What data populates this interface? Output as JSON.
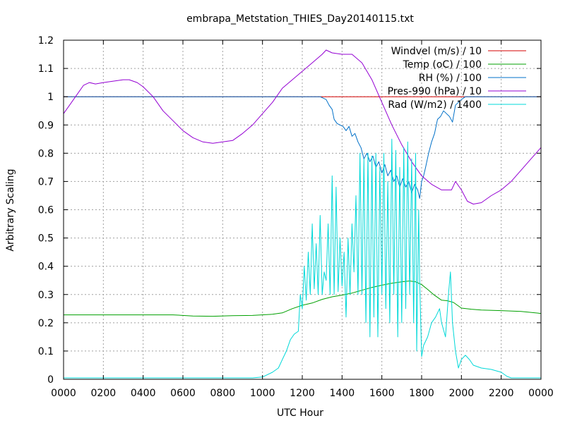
{
  "chart_data": {
    "type": "line",
    "title": "embrapa_Metstation_THIES_Day20140115.txt",
    "xlabel": "UTC Hour",
    "ylabel": "Arbitrary Scaling",
    "xlim": [
      0,
      24
    ],
    "ylim": [
      0,
      1.2
    ],
    "grid": true,
    "legend_position": "top-right",
    "x_ticks": [
      {
        "v": 0,
        "label": "0000"
      },
      {
        "v": 2,
        "label": "0200"
      },
      {
        "v": 4,
        "label": "0400"
      },
      {
        "v": 6,
        "label": "0600"
      },
      {
        "v": 8,
        "label": "0800"
      },
      {
        "v": 10,
        "label": "1000"
      },
      {
        "v": 12,
        "label": "1200"
      },
      {
        "v": 14,
        "label": "1400"
      },
      {
        "v": 16,
        "label": "1600"
      },
      {
        "v": 18,
        "label": "1800"
      },
      {
        "v": 20,
        "label": "2000"
      },
      {
        "v": 22,
        "label": "2200"
      },
      {
        "v": 24,
        "label": "0000"
      }
    ],
    "y_ticks": [
      {
        "v": 0,
        "label": "0"
      },
      {
        "v": 0.1,
        "label": "0.1"
      },
      {
        "v": 0.2,
        "label": "0.2"
      },
      {
        "v": 0.3,
        "label": "0.3"
      },
      {
        "v": 0.4,
        "label": "0.4"
      },
      {
        "v": 0.5,
        "label": "0.5"
      },
      {
        "v": 0.6,
        "label": "0.6"
      },
      {
        "v": 0.7,
        "label": "0.7"
      },
      {
        "v": 0.8,
        "label": "0.8"
      },
      {
        "v": 0.9,
        "label": "0.9"
      },
      {
        "v": 1.0,
        "label": "1"
      },
      {
        "v": 1.1,
        "label": "1.1"
      },
      {
        "v": 1.2,
        "label": "1.2"
      }
    ],
    "series": [
      {
        "name": "Windvel (m/s) / 10",
        "color": "#d40000",
        "points": [
          [
            0,
            1.0
          ],
          [
            24,
            1.0
          ]
        ]
      },
      {
        "name": "Temp (oC) / 100",
        "color": "#00a000",
        "points": [
          [
            0,
            0.228
          ],
          [
            2,
            0.228
          ],
          [
            4,
            0.228
          ],
          [
            5.5,
            0.228
          ],
          [
            6.5,
            0.224
          ],
          [
            7.5,
            0.223
          ],
          [
            8.5,
            0.225
          ],
          [
            9.5,
            0.226
          ],
          [
            10.5,
            0.23
          ],
          [
            11,
            0.235
          ],
          [
            11.5,
            0.25
          ],
          [
            12,
            0.262
          ],
          [
            12.5,
            0.27
          ],
          [
            13,
            0.283
          ],
          [
            13.5,
            0.292
          ],
          [
            14,
            0.298
          ],
          [
            14.5,
            0.305
          ],
          [
            15,
            0.315
          ],
          [
            15.5,
            0.325
          ],
          [
            16,
            0.333
          ],
          [
            16.5,
            0.34
          ],
          [
            17,
            0.345
          ],
          [
            17.4,
            0.348
          ],
          [
            17.7,
            0.345
          ],
          [
            18,
            0.335
          ],
          [
            18.3,
            0.318
          ],
          [
            18.6,
            0.3
          ],
          [
            19,
            0.28
          ],
          [
            19.3,
            0.278
          ],
          [
            19.6,
            0.272
          ],
          [
            20,
            0.252
          ],
          [
            20.5,
            0.248
          ],
          [
            21,
            0.245
          ],
          [
            22,
            0.243
          ],
          [
            23,
            0.24
          ],
          [
            24,
            0.233
          ]
        ]
      },
      {
        "name": "RH (%) / 100",
        "color": "#0070c8",
        "points": [
          [
            0,
            1.0
          ],
          [
            12.9,
            1.0
          ],
          [
            13.05,
            0.995
          ],
          [
            13.2,
            0.99
          ],
          [
            13.35,
            0.97
          ],
          [
            13.5,
            0.955
          ],
          [
            13.6,
            0.92
          ],
          [
            13.75,
            0.905
          ],
          [
            13.9,
            0.9
          ],
          [
            14.05,
            0.895
          ],
          [
            14.2,
            0.88
          ],
          [
            14.35,
            0.895
          ],
          [
            14.5,
            0.86
          ],
          [
            14.65,
            0.87
          ],
          [
            14.8,
            0.84
          ],
          [
            14.95,
            0.82
          ],
          [
            15.1,
            0.78
          ],
          [
            15.25,
            0.8
          ],
          [
            15.4,
            0.77
          ],
          [
            15.55,
            0.79
          ],
          [
            15.7,
            0.75
          ],
          [
            15.85,
            0.77
          ],
          [
            16,
            0.73
          ],
          [
            16.15,
            0.76
          ],
          [
            16.3,
            0.72
          ],
          [
            16.45,
            0.74
          ],
          [
            16.6,
            0.7
          ],
          [
            16.75,
            0.72
          ],
          [
            16.9,
            0.68
          ],
          [
            17.05,
            0.71
          ],
          [
            17.2,
            0.68
          ],
          [
            17.35,
            0.7
          ],
          [
            17.5,
            0.66
          ],
          [
            17.65,
            0.69
          ],
          [
            17.8,
            0.67
          ],
          [
            17.9,
            0.64
          ],
          [
            18.0,
            0.7
          ],
          [
            18.1,
            0.72
          ],
          [
            18.2,
            0.75
          ],
          [
            18.35,
            0.8
          ],
          [
            18.5,
            0.84
          ],
          [
            18.65,
            0.87
          ],
          [
            18.8,
            0.92
          ],
          [
            18.95,
            0.93
          ],
          [
            19.1,
            0.95
          ],
          [
            19.25,
            0.94
          ],
          [
            19.4,
            0.93
          ],
          [
            19.55,
            0.91
          ],
          [
            19.7,
            0.97
          ],
          [
            19.85,
            0.98
          ],
          [
            20.0,
            0.99
          ],
          [
            20.2,
            1.0
          ],
          [
            24,
            1.0
          ]
        ]
      },
      {
        "name": "Pres-990 (hPa) / 10",
        "color": "#9400d3",
        "points": [
          [
            0,
            0.94
          ],
          [
            0.3,
            0.97
          ],
          [
            0.6,
            1.0
          ],
          [
            1.0,
            1.04
          ],
          [
            1.3,
            1.05
          ],
          [
            1.6,
            1.045
          ],
          [
            2.0,
            1.05
          ],
          [
            2.5,
            1.055
          ],
          [
            3.0,
            1.06
          ],
          [
            3.3,
            1.06
          ],
          [
            3.7,
            1.05
          ],
          [
            4.0,
            1.035
          ],
          [
            4.5,
            1.0
          ],
          [
            5.0,
            0.95
          ],
          [
            5.5,
            0.915
          ],
          [
            6.0,
            0.88
          ],
          [
            6.5,
            0.855
          ],
          [
            7.0,
            0.84
          ],
          [
            7.5,
            0.835
          ],
          [
            8.0,
            0.84
          ],
          [
            8.5,
            0.845
          ],
          [
            9.0,
            0.87
          ],
          [
            9.5,
            0.9
          ],
          [
            10.0,
            0.94
          ],
          [
            10.5,
            0.98
          ],
          [
            11.0,
            1.03
          ],
          [
            11.5,
            1.06
          ],
          [
            12.0,
            1.09
          ],
          [
            12.5,
            1.12
          ],
          [
            13.0,
            1.15
          ],
          [
            13.2,
            1.165
          ],
          [
            13.5,
            1.155
          ],
          [
            14.0,
            1.15
          ],
          [
            14.5,
            1.15
          ],
          [
            15.0,
            1.12
          ],
          [
            15.5,
            1.06
          ],
          [
            16.0,
            0.98
          ],
          [
            16.5,
            0.9
          ],
          [
            17.0,
            0.83
          ],
          [
            17.5,
            0.77
          ],
          [
            18.0,
            0.72
          ],
          [
            18.5,
            0.69
          ],
          [
            19.0,
            0.67
          ],
          [
            19.5,
            0.67
          ],
          [
            19.7,
            0.7
          ],
          [
            20.0,
            0.67
          ],
          [
            20.3,
            0.63
          ],
          [
            20.6,
            0.62
          ],
          [
            21.0,
            0.625
          ],
          [
            21.5,
            0.65
          ],
          [
            22.0,
            0.67
          ],
          [
            22.5,
            0.7
          ],
          [
            23.0,
            0.74
          ],
          [
            23.5,
            0.78
          ],
          [
            24.0,
            0.82
          ]
        ]
      },
      {
        "name": "Rad (W/m2) / 1400",
        "color": "#00d8d8",
        "points": [
          [
            0,
            0.005
          ],
          [
            9.5,
            0.005
          ],
          [
            10.0,
            0.008
          ],
          [
            10.5,
            0.025
          ],
          [
            10.8,
            0.04
          ],
          [
            11.0,
            0.07
          ],
          [
            11.2,
            0.1
          ],
          [
            11.4,
            0.14
          ],
          [
            11.6,
            0.16
          ],
          [
            11.8,
            0.17
          ],
          [
            11.9,
            0.3
          ],
          [
            12.0,
            0.25
          ],
          [
            12.1,
            0.4
          ],
          [
            12.2,
            0.28
          ],
          [
            12.3,
            0.45
          ],
          [
            12.4,
            0.3
          ],
          [
            12.5,
            0.55
          ],
          [
            12.6,
            0.32
          ],
          [
            12.7,
            0.48
          ],
          [
            12.8,
            0.3
          ],
          [
            12.9,
            0.58
          ],
          [
            13.0,
            0.3
          ],
          [
            13.1,
            0.38
          ],
          [
            13.2,
            0.35
          ],
          [
            13.3,
            0.55
          ],
          [
            13.4,
            0.3
          ],
          [
            13.5,
            0.72
          ],
          [
            13.6,
            0.3
          ],
          [
            13.7,
            0.68
          ],
          [
            13.8,
            0.31
          ],
          [
            13.9,
            0.5
          ],
          [
            14.0,
            0.33
          ],
          [
            14.1,
            0.45
          ],
          [
            14.2,
            0.22
          ],
          [
            14.3,
            0.5
          ],
          [
            14.4,
            0.3
          ],
          [
            14.5,
            0.55
          ],
          [
            14.6,
            0.38
          ],
          [
            14.7,
            0.65
          ],
          [
            14.8,
            0.3
          ],
          [
            14.9,
            0.8
          ],
          [
            15.0,
            0.3
          ],
          [
            15.1,
            0.78
          ],
          [
            15.2,
            0.2
          ],
          [
            15.3,
            0.8
          ],
          [
            15.4,
            0.15
          ],
          [
            15.5,
            0.79
          ],
          [
            15.6,
            0.22
          ],
          [
            15.7,
            0.8
          ],
          [
            15.8,
            0.15
          ],
          [
            15.9,
            0.75
          ],
          [
            16.0,
            0.3
          ],
          [
            16.1,
            0.8
          ],
          [
            16.2,
            0.25
          ],
          [
            16.3,
            0.7
          ],
          [
            16.4,
            0.2
          ],
          [
            16.5,
            0.85
          ],
          [
            16.6,
            0.3
          ],
          [
            16.7,
            0.81
          ],
          [
            16.8,
            0.15
          ],
          [
            16.9,
            0.75
          ],
          [
            17.0,
            0.2
          ],
          [
            17.1,
            0.82
          ],
          [
            17.2,
            0.25
          ],
          [
            17.3,
            0.84
          ],
          [
            17.4,
            0.3
          ],
          [
            17.5,
            0.78
          ],
          [
            17.6,
            0.2
          ],
          [
            17.7,
            0.8
          ],
          [
            17.75,
            0.1
          ],
          [
            17.85,
            0.6
          ],
          [
            17.9,
            0.35
          ],
          [
            18.0,
            0.08
          ],
          [
            18.1,
            0.12
          ],
          [
            18.3,
            0.15
          ],
          [
            18.5,
            0.2
          ],
          [
            18.7,
            0.22
          ],
          [
            18.9,
            0.25
          ],
          [
            19.0,
            0.2
          ],
          [
            19.2,
            0.15
          ],
          [
            19.35,
            0.3
          ],
          [
            19.45,
            0.38
          ],
          [
            19.55,
            0.2
          ],
          [
            19.7,
            0.1
          ],
          [
            19.85,
            0.04
          ],
          [
            20.0,
            0.07
          ],
          [
            20.2,
            0.085
          ],
          [
            20.4,
            0.07
          ],
          [
            20.6,
            0.05
          ],
          [
            21.0,
            0.04
          ],
          [
            21.5,
            0.035
          ],
          [
            22.0,
            0.025
          ],
          [
            22.3,
            0.01
          ],
          [
            22.5,
            0.005
          ],
          [
            24,
            0.005
          ]
        ]
      }
    ]
  }
}
